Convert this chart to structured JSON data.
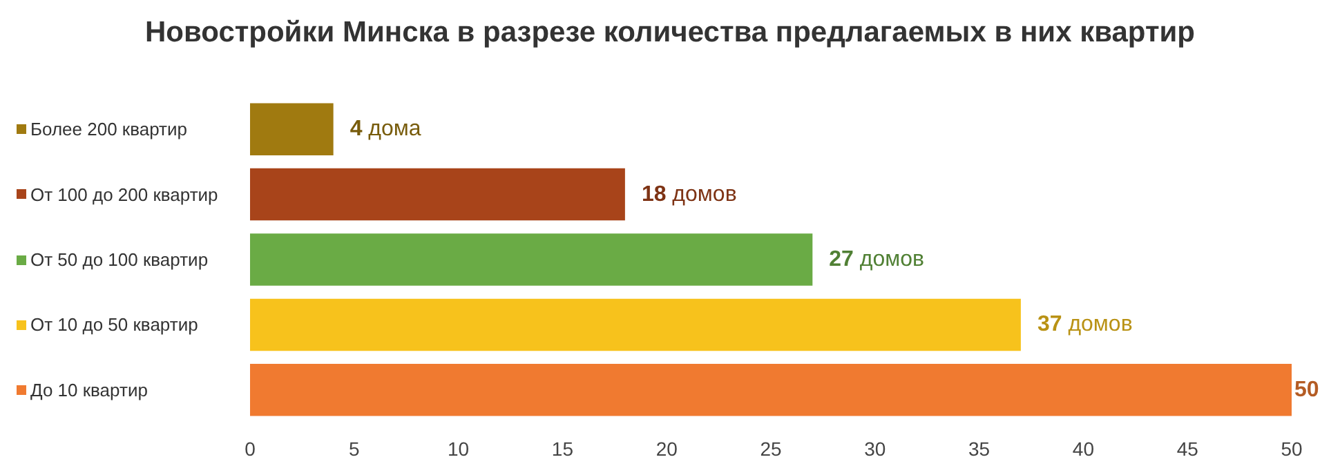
{
  "chart_data": {
    "type": "bar",
    "orientation": "horizontal",
    "title": "Новостройки Минска в разрезе количества предлагаемых в них квартир",
    "categories": [
      "Более 200 квартир",
      "От 100 до 200 квартир",
      "От 50 до 100 квартир",
      "От 10 до 50 квартир",
      "До 10 квартир"
    ],
    "values": [
      4,
      18,
      27,
      37,
      50
    ],
    "colors": [
      "#a07a10",
      "#a8441a",
      "#6aab45",
      "#f7c21c",
      "#f07a30"
    ],
    "value_labels": [
      "4 дома",
      "18 домов",
      "27 домов",
      "37 домов",
      "50"
    ],
    "xlim": [
      0,
      50
    ],
    "xticks": [
      0,
      5,
      10,
      15,
      20,
      25,
      30,
      35,
      40,
      45,
      50
    ],
    "grid": false
  }
}
